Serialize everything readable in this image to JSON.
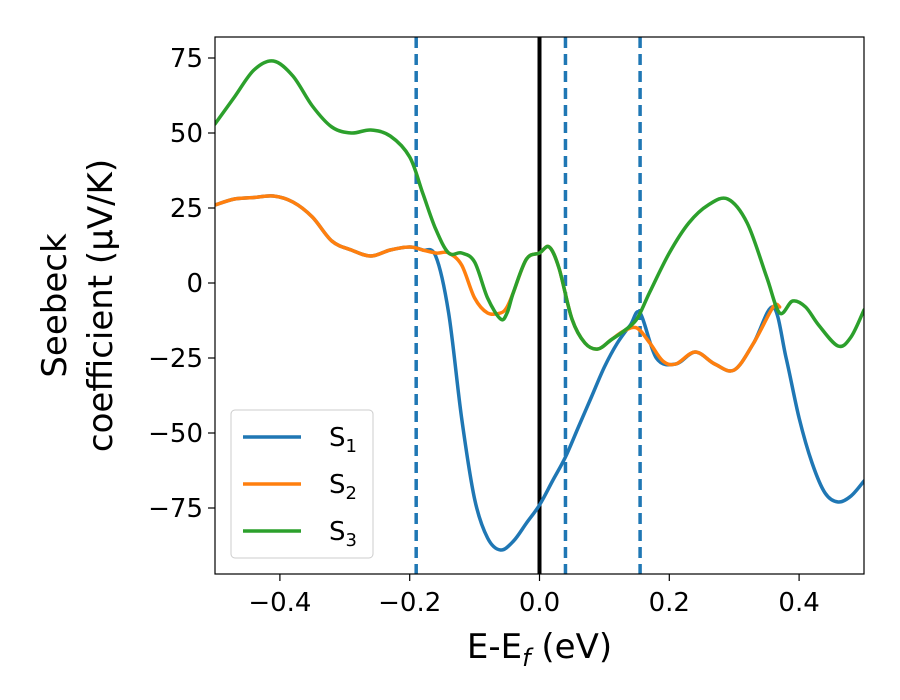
{
  "chart_data": {
    "type": "line",
    "xlabel": "E-E_f (eV)",
    "xlabel_parts": {
      "main": "E-E",
      "sub": "f",
      "tail": " (eV)"
    },
    "ylabel_line1": "Seebeck",
    "ylabel_line2": "coefficient  (μV/K)",
    "xlim": [
      -0.5,
      0.5
    ],
    "ylim": [
      -97,
      82
    ],
    "xticks": [
      -0.4,
      -0.2,
      0.0,
      0.2,
      0.4
    ],
    "xtick_labels": [
      "−0.4",
      "−0.2",
      "0.0",
      "0.2",
      "0.4"
    ],
    "yticks": [
      75,
      50,
      25,
      0,
      -25,
      -50,
      -75
    ],
    "ytick_labels": [
      "75",
      "50",
      "25",
      "0",
      "−25",
      "−50",
      "−75"
    ],
    "grid": false,
    "legend_position": "bottom-left",
    "vertical_lines": [
      {
        "x": 0.0,
        "style": "solid",
        "color": "#000000"
      },
      {
        "x": -0.19,
        "style": "dashed",
        "color": "#1f77b4"
      },
      {
        "x": 0.04,
        "style": "dashed",
        "color": "#1f77b4"
      },
      {
        "x": 0.155,
        "style": "dashed",
        "color": "#1f77b4"
      }
    ],
    "series": [
      {
        "name": "S1",
        "label_main": "S",
        "label_sub": "1",
        "color": "#1f77b4",
        "x": [
          -0.5,
          -0.47,
          -0.44,
          -0.41,
          -0.38,
          -0.35,
          -0.32,
          -0.29,
          -0.26,
          -0.23,
          -0.2,
          -0.18,
          -0.16,
          -0.14,
          -0.12,
          -0.1,
          -0.08,
          -0.06,
          -0.04,
          -0.02,
          0.0,
          0.02,
          0.04,
          0.06,
          0.08,
          0.1,
          0.12,
          0.14,
          0.155,
          0.18,
          0.21,
          0.24,
          0.27,
          0.3,
          0.33,
          0.36,
          0.38,
          0.4,
          0.42,
          0.44,
          0.46,
          0.48,
          0.5
        ],
        "values": [
          26,
          28,
          28.5,
          29,
          27,
          22,
          14,
          11,
          9,
          11,
          12,
          11,
          9,
          -10,
          -45,
          -72,
          -85,
          -89,
          -86,
          -80,
          -74,
          -66,
          -58,
          -48,
          -38,
          -28,
          -20,
          -14,
          -10,
          -25,
          -27,
          -23,
          -27,
          -29,
          -20,
          -8,
          -25,
          -45,
          -60,
          -70,
          -73,
          -71,
          -66
        ]
      },
      {
        "name": "S2",
        "label_main": "S",
        "label_sub": "2",
        "color": "#ff7f0e",
        "x": [
          -0.5,
          -0.47,
          -0.44,
          -0.41,
          -0.38,
          -0.35,
          -0.32,
          -0.29,
          -0.26,
          -0.23,
          -0.2,
          -0.18,
          -0.16,
          -0.14,
          -0.155,
          -0.12,
          -0.1,
          -0.08,
          -0.06,
          -0.05,
          -0.04,
          -0.02,
          0.0,
          0.015,
          0.03,
          0.05,
          0.07,
          0.09,
          0.11,
          0.13,
          0.15,
          0.17,
          0.19,
          0.21,
          0.24,
          0.27,
          0.3,
          0.33,
          0.36,
          0.37
        ],
        "values": [
          26,
          28,
          28.5,
          29,
          27,
          22,
          14,
          11,
          9,
          11,
          12,
          11,
          10,
          10,
          10,
          6,
          -5,
          -10,
          -10,
          -8,
          -3,
          8,
          10,
          12,
          5,
          -12,
          -20,
          -22,
          -19,
          -16,
          -15,
          -20,
          -26,
          -27,
          -23,
          -27,
          -29,
          -20,
          -8,
          -8
        ]
      },
      {
        "name": "S3",
        "label_main": "S",
        "label_sub": "3",
        "color": "#2ca02c",
        "x": [
          -0.5,
          -0.47,
          -0.44,
          -0.41,
          -0.38,
          -0.35,
          -0.32,
          -0.29,
          -0.26,
          -0.23,
          -0.2,
          -0.18,
          -0.16,
          -0.14,
          -0.12,
          -0.1,
          -0.08,
          -0.06,
          -0.05,
          -0.04,
          -0.02,
          0.0,
          0.015,
          0.03,
          0.05,
          0.07,
          0.09,
          0.11,
          0.13,
          0.15,
          0.17,
          0.2,
          0.23,
          0.26,
          0.29,
          0.32,
          0.35,
          0.37,
          0.39,
          0.41,
          0.43,
          0.46,
          0.48,
          0.5
        ],
        "values": [
          53,
          62,
          71,
          74,
          69,
          59,
          52,
          50,
          51,
          49,
          42,
          30,
          18,
          10,
          10,
          7,
          -5,
          -12,
          -10,
          -3,
          8,
          10,
          12,
          5,
          -12,
          -20,
          -22,
          -19,
          -16,
          -12,
          -3,
          10,
          20,
          26,
          28,
          20,
          2,
          -10,
          -6,
          -8,
          -14,
          -21,
          -18,
          -9
        ]
      }
    ]
  }
}
